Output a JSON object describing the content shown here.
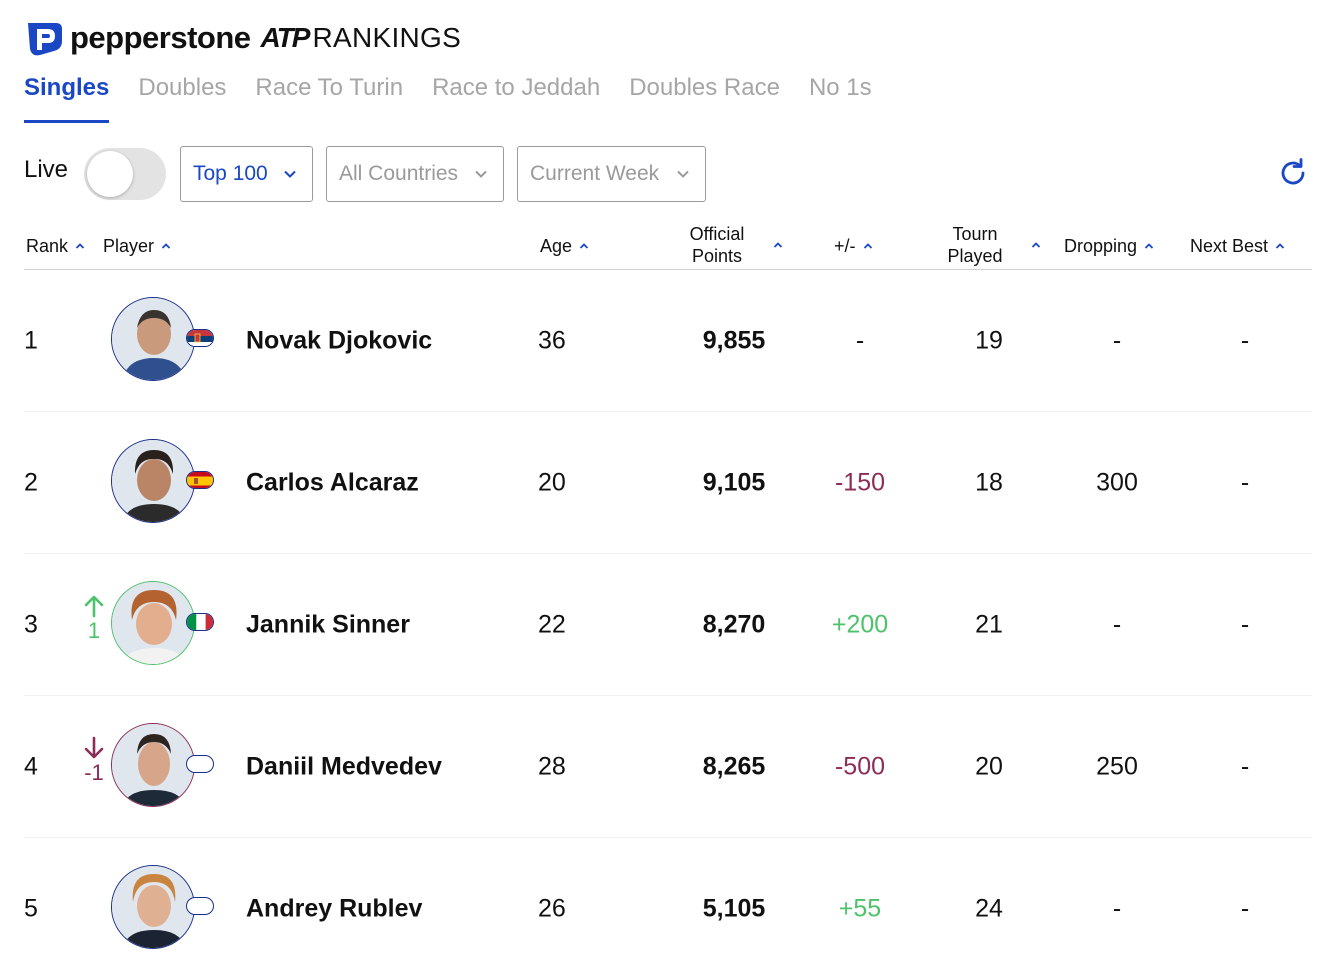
{
  "brand": {
    "name": "pepperstone",
    "atp": "ATP",
    "rankings": "RANKINGS"
  },
  "tabs": [
    {
      "label": "Singles",
      "active": true
    },
    {
      "label": "Doubles"
    },
    {
      "label": "Race To Turin"
    },
    {
      "label": "Race to Jeddah"
    },
    {
      "label": "Doubles Race"
    },
    {
      "label": "No 1s"
    }
  ],
  "filters": {
    "live_label": "Live",
    "live_on": false,
    "range": "Top 100",
    "countries": "All Countries",
    "week": "Current Week"
  },
  "columns": {
    "rank": "Rank",
    "player": "Player",
    "age": "Age",
    "points_line1": "Official",
    "points_line2": "Points",
    "diff": "+/-",
    "tourn_line1": "Tourn",
    "tourn_line2": "Played",
    "dropping": "Dropping",
    "next_best": "Next Best"
  },
  "colors": {
    "accent": "#1a47c4",
    "up": "#4ec26a",
    "down": "#8c2d55"
  },
  "rows": [
    {
      "rank": "1",
      "name": "Novak Djokovic",
      "age": "36",
      "points": "9,855",
      "diff": "-",
      "tourn": "19",
      "dropping": "-",
      "next_best": "-",
      "flag": "serbia"
    },
    {
      "rank": "2",
      "name": "Carlos Alcaraz",
      "age": "20",
      "points": "9,105",
      "diff": "-150",
      "tourn": "18",
      "dropping": "300",
      "next_best": "-",
      "flag": "spain"
    },
    {
      "rank": "3",
      "move": "1",
      "name": "Jannik Sinner",
      "age": "22",
      "points": "8,270",
      "diff": "+200",
      "tourn": "21",
      "dropping": "-",
      "next_best": "-",
      "flag": "italy"
    },
    {
      "rank": "4",
      "move": "-1",
      "name": "Daniil Medvedev",
      "age": "28",
      "points": "8,265",
      "diff": "-500",
      "tourn": "20",
      "dropping": "250",
      "next_best": "-",
      "flag": "neutral"
    },
    {
      "rank": "5",
      "name": "Andrey Rublev",
      "age": "26",
      "points": "5,105",
      "diff": "+55",
      "tourn": "24",
      "dropping": "-",
      "next_best": "-",
      "flag": "neutral"
    }
  ]
}
